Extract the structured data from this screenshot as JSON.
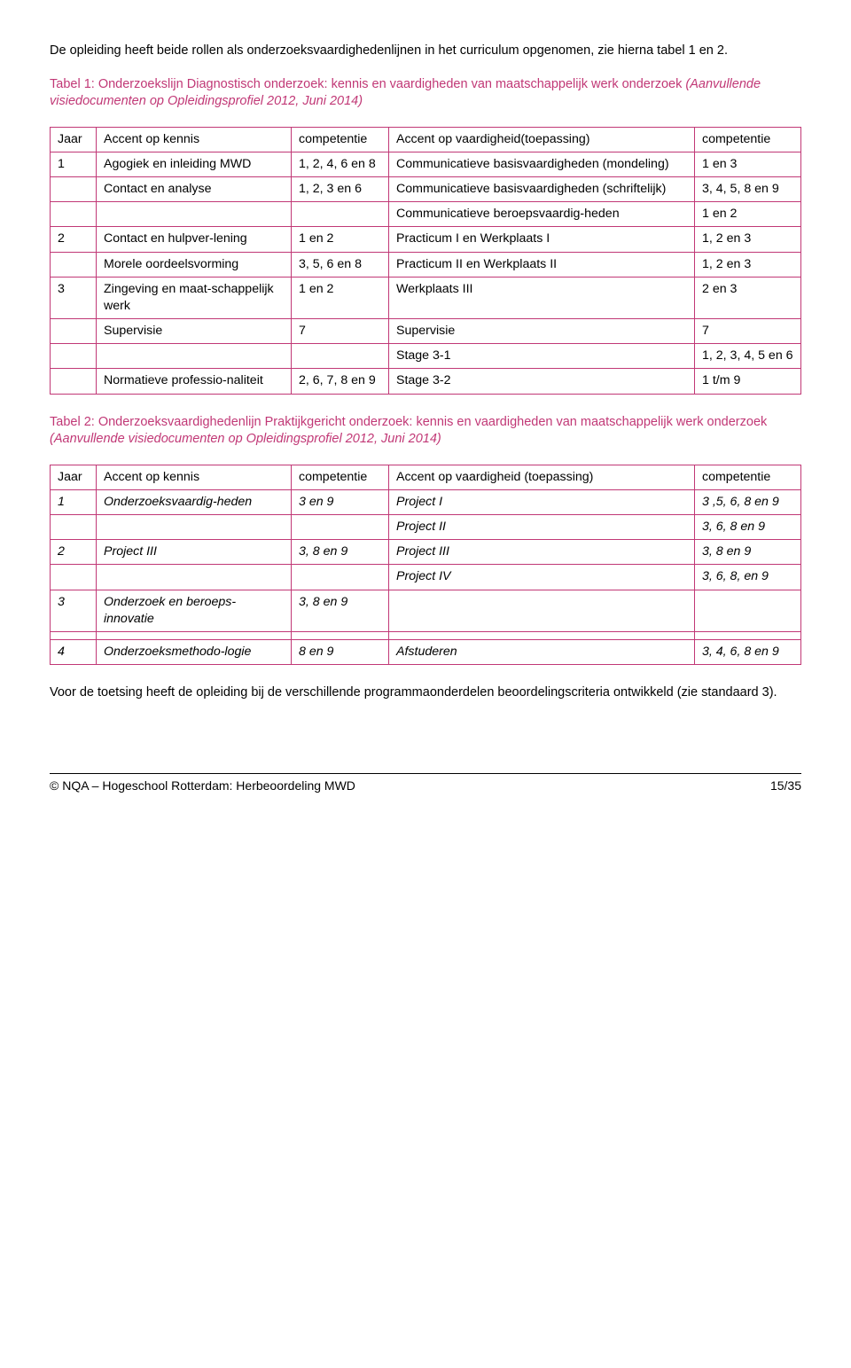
{
  "intro": "De opleiding heeft beide rollen als onderzoeksvaardighedenlijnen in het curriculum opgenomen, zie hierna tabel 1 en 2.",
  "table1_caption": {
    "plain": "Tabel 1: Onderzoekslijn Diagnostisch onderzoek: kennis en vaardigheden van maatschappelijk werk onderzoek ",
    "italic": "(Aanvullende visiedocumenten op Opleidingsprofiel 2012, Juni 2014)"
  },
  "table1": {
    "headers": [
      "Jaar",
      "Accent op kennis",
      "competentie",
      "Accent op vaardigheid(toepassing)",
      "competentie"
    ],
    "rows": [
      [
        "1",
        "Agogiek en inleiding MWD",
        "1, 2, 4, 6 en 8",
        "Communicatieve basisvaardigheden (mondeling)",
        "1 en 3"
      ],
      [
        "",
        "Contact en analyse",
        "1, 2, 3 en 6",
        "Communicatieve basisvaardigheden (schriftelijk)",
        "3, 4, 5, 8 en 9"
      ],
      [
        "",
        "",
        "",
        "Communicatieve beroepsvaardig-heden",
        "1 en 2"
      ],
      [
        "2",
        "Contact en hulpver-lening",
        "1 en 2",
        "Practicum I en Werkplaats I",
        "1, 2 en 3"
      ],
      [
        "",
        "Morele oordeelsvorming",
        "3, 5, 6 en 8",
        "Practicum II en Werkplaats II",
        "1, 2 en 3"
      ],
      [
        "3",
        "Zingeving en maat-schappelijk werk",
        "1 en 2",
        "Werkplaats III",
        "2 en 3"
      ],
      [
        "",
        "Supervisie",
        "7",
        "Supervisie",
        "7"
      ],
      [
        "",
        "",
        "",
        "Stage 3-1",
        "1, 2, 3, 4, 5 en 6"
      ],
      [
        "",
        "Normatieve professio-naliteit",
        "2, 6, 7, 8 en 9",
        "Stage 3-2",
        "1 t/m 9"
      ]
    ]
  },
  "table2_caption": {
    "plain": "Tabel 2: Onderzoeksvaardighedenlijn Praktijkgericht onderzoek: kennis en vaardigheden van maatschappelijk werk onderzoek ",
    "italic": "(Aanvullende visiedocumenten op Opleidingsprofiel 2012, Juni 2014)"
  },
  "table2": {
    "headers": [
      "Jaar",
      "Accent op kennis",
      "competentie",
      "Accent op vaardigheid (toepassing)",
      "competentie"
    ],
    "rows": [
      [
        "1",
        "Onderzoeksvaardig-heden",
        "3 en 9",
        "Project I",
        "3 ,5, 6, 8 en 9"
      ],
      [
        "",
        "",
        "",
        "Project II",
        "3, 6, 8 en 9"
      ],
      [
        "2",
        "Project III",
        "3, 8 en 9",
        "Project III",
        "3, 8 en 9"
      ],
      [
        "",
        "",
        "",
        "Project IV",
        "3, 6, 8, en 9"
      ],
      [
        "3",
        "Onderzoek en beroeps-innovatie",
        "3, 8 en 9",
        "",
        ""
      ],
      [
        "",
        "",
        "",
        "",
        ""
      ],
      [
        "4",
        "Onderzoeksmethodo-logie",
        "8 en 9",
        "Afstuderen",
        "3, 4, 6, 8 en 9"
      ]
    ]
  },
  "closing": "Voor de toetsing heeft de opleiding bij de verschillende programmaonderdelen beoordelingscriteria ontwikkeld (zie standaard 3).",
  "footer": {
    "left": "© NQA – Hogeschool Rotterdam: Herbeoordeling MWD",
    "right": "15/35"
  },
  "colors": {
    "accent": "#c13876",
    "text": "#000000",
    "background": "#ffffff"
  },
  "typography": {
    "body_fontsize_pt": 11,
    "font_family": "Arial"
  }
}
